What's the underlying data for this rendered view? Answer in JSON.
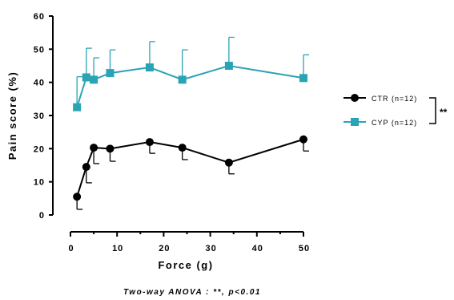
{
  "chart_data": {
    "type": "line",
    "title": "",
    "xlabel": "Force (g)",
    "ylabel": "Pain score (%)",
    "xlim": [
      0,
      50
    ],
    "ylim": [
      0,
      60
    ],
    "xticks": [
      0,
      10,
      20,
      30,
      40,
      50
    ],
    "yticks": [
      0,
      10,
      20,
      30,
      40,
      50,
      60
    ],
    "grid": false,
    "legend_position": "right",
    "x": [
      1.4,
      3.4,
      5,
      8.5,
      17,
      24,
      34,
      50
    ],
    "series": [
      {
        "name": "CTR (n=12)",
        "color": "#000000",
        "marker": "circle",
        "values": [
          5.5,
          14.5,
          20.3,
          20.0,
          22.0,
          20.3,
          15.8,
          22.8
        ],
        "error": [
          3.8,
          4.8,
          4.8,
          3.8,
          3.4,
          3.6,
          3.4,
          3.5
        ],
        "error_direction": "down"
      },
      {
        "name": "CYP (n=12)",
        "color": "#2aa3b5",
        "marker": "square",
        "values": [
          32.5,
          41.5,
          40.8,
          42.8,
          44.5,
          40.8,
          45.0,
          41.3
        ],
        "error": [
          9.2,
          8.8,
          6.6,
          7.0,
          7.8,
          9.0,
          8.6,
          7.0
        ],
        "error_direction": "up"
      }
    ],
    "significance": "**",
    "footnote": "Two-way ANOVA : **, p<0.01"
  }
}
